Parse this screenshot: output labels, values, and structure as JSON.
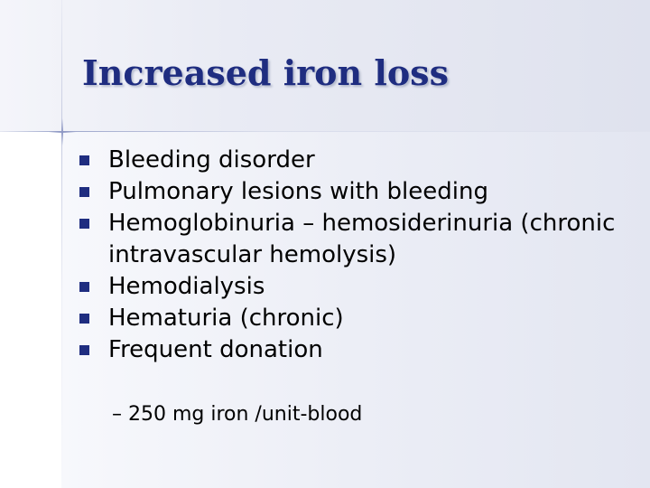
{
  "slide": {
    "title": "Increased iron loss",
    "bullets": [
      "Bleeding disorder",
      "Pulmonary lesions with bleeding",
      "Hemoglobinuria – hemosiderinuria (chronic intravascular hemolysis)",
      "Hemodialysis",
      "Hematuria (chronic)",
      "Frequent donation"
    ],
    "sub_bullet": "– 250 mg iron /unit-blood"
  },
  "colors": {
    "title": "#1f2d80",
    "bullet_marker": "#1f2d80",
    "text": "#000000"
  }
}
